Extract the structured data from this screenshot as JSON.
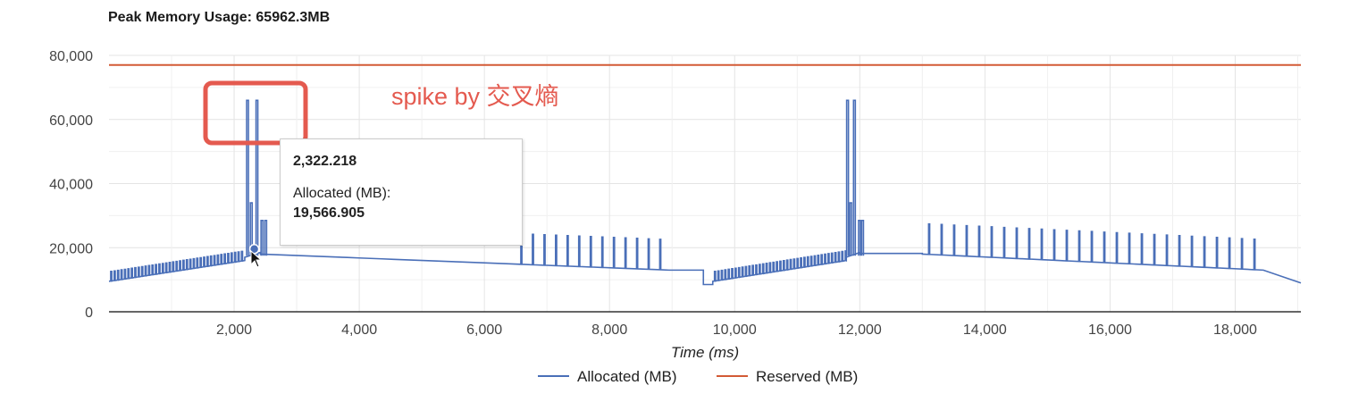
{
  "page": {
    "title": "Peak Memory Usage: 65962.3MB",
    "annotation": "spike by 交叉熵"
  },
  "tooltip": {
    "x_label": "2,322.218",
    "series_label": "Allocated (MB):",
    "value_label": "19,566.905"
  },
  "colors": {
    "allocated": "#4a6fb8",
    "reserved": "#d35a35",
    "annotation": "#e45a4f",
    "grid": "#e4e4e4"
  },
  "chart_data": {
    "type": "line",
    "title": "Peak Memory Usage: 65962.3MB",
    "xlabel": "Time (ms)",
    "ylabel": "",
    "xlim": [
      0,
      19050
    ],
    "ylim": [
      0,
      80000
    ],
    "x_ticks": [
      2000,
      4000,
      6000,
      8000,
      10000,
      12000,
      14000,
      16000,
      18000
    ],
    "x_tick_labels": [
      "2,000",
      "4,000",
      "6,000",
      "8,000",
      "10,000",
      "12,000",
      "14,000",
      "16,000",
      "18,000"
    ],
    "y_ticks": [
      0,
      20000,
      40000,
      60000,
      80000
    ],
    "y_tick_labels": [
      "0",
      "20,000",
      "40,000",
      "60,000",
      "80,000"
    ],
    "grid": true,
    "legend_position": "bottom",
    "series": [
      {
        "name": "Allocated (MB)",
        "segments": [
          {
            "x_start": 0,
            "x_end": 2170,
            "y_start": 9500,
            "y_end": 16000,
            "spike_every": 55,
            "spike_height": 3000
          },
          {
            "x_start": 2170,
            "x_end": 2420,
            "y_start": 17000,
            "y_end": 18500
          },
          {
            "x_start": 2420,
            "x_end": 8950,
            "y_start": 18000,
            "y_end": 13000,
            "spike_every": 185,
            "spike_height": 9500,
            "spike_from": 6500
          },
          {
            "x_start": 8950,
            "x_end": 9500,
            "y_start": 13000,
            "y_end": 13000
          },
          {
            "x_start": 9500,
            "x_end": 9650,
            "y_start": 8500,
            "y_end": 8500
          },
          {
            "x_start": 9650,
            "x_end": 11780,
            "y_start": 9500,
            "y_end": 16000,
            "spike_every": 55,
            "spike_height": 3000
          },
          {
            "x_start": 11780,
            "x_end": 12000,
            "y_start": 17000,
            "y_end": 18500
          },
          {
            "x_start": 12000,
            "x_end": 13000,
            "y_start": 18200,
            "y_end": 18200
          },
          {
            "x_start": 13000,
            "x_end": 18450,
            "y_start": 18000,
            "y_end": 13000,
            "spike_every": 200,
            "spike_height": 9500
          },
          {
            "x_start": 18450,
            "x_end": 19050,
            "y_start": 13000,
            "y_end": 9000
          }
        ],
        "spikes": [
          {
            "x": 2200,
            "y": 65962
          },
          {
            "x": 2350,
            "y": 65962
          },
          {
            "x": 2260,
            "y": 34000
          },
          {
            "x": 2430,
            "y": 28500
          },
          {
            "x": 2490,
            "y": 28500
          },
          {
            "x": 11790,
            "y": 65962
          },
          {
            "x": 11900,
            "y": 65962
          },
          {
            "x": 11840,
            "y": 34000
          },
          {
            "x": 11980,
            "y": 28500
          },
          {
            "x": 12030,
            "y": 28500
          }
        ]
      },
      {
        "name": "Reserved (MB)",
        "x": [
          0,
          19050
        ],
        "values": [
          77000,
          77000
        ]
      }
    ]
  },
  "legend": {
    "allocated": "Allocated (MB)",
    "reserved": "Reserved (MB)"
  }
}
